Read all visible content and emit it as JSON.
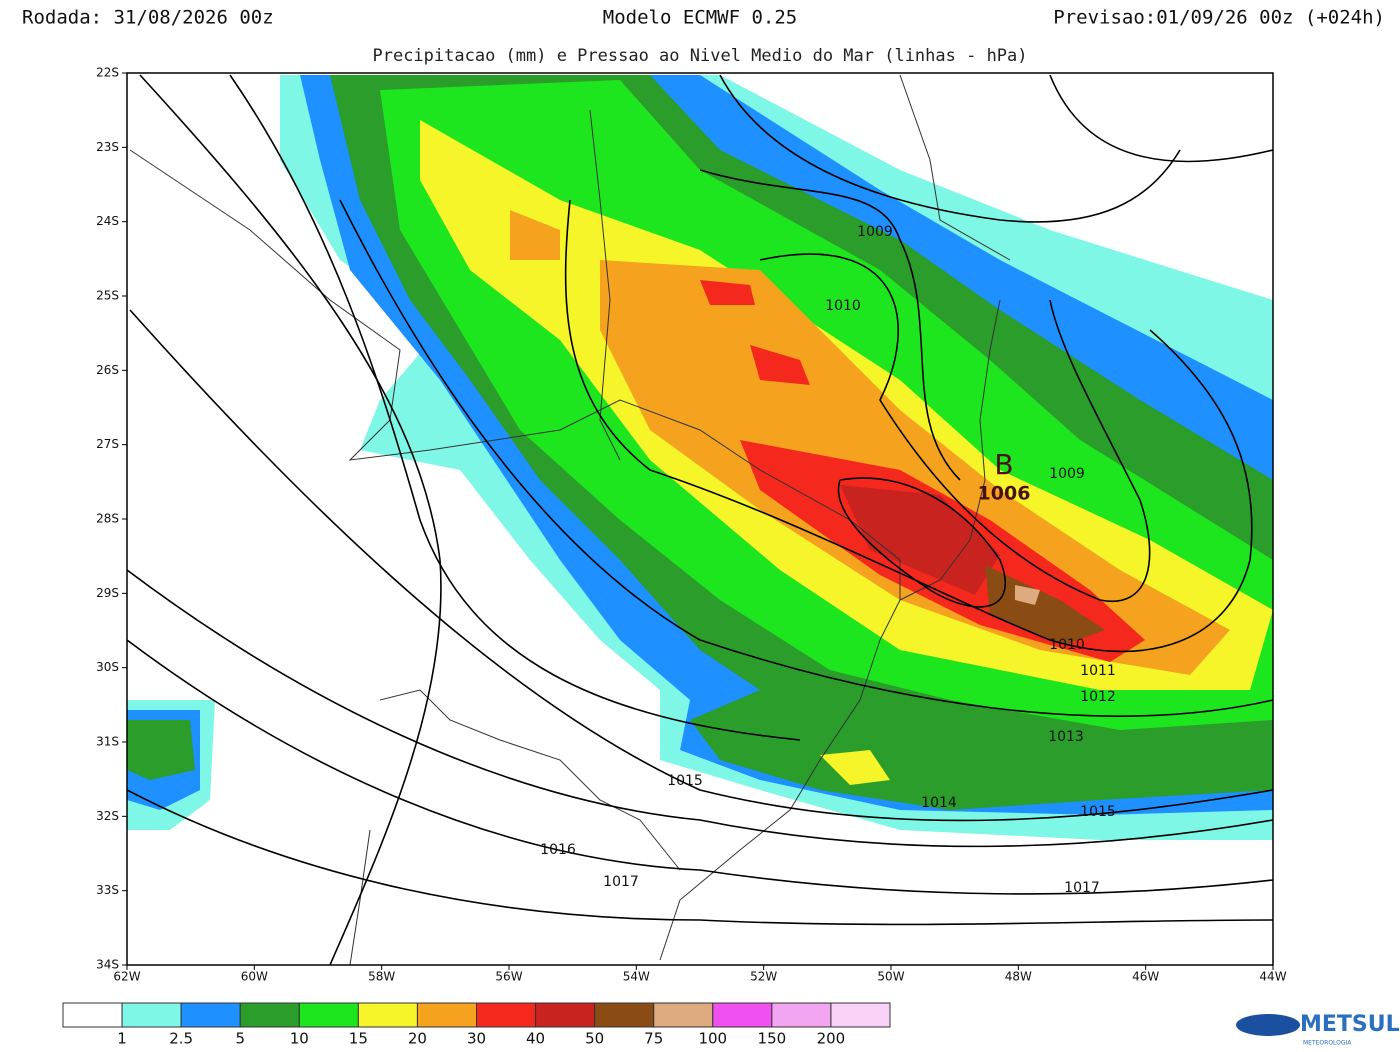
{
  "header": {
    "run": "Rodada: 31/08/2026 00z",
    "model": "Modelo ECMWF 0.25",
    "forecast": "Previsao:01/09/26 00z (+024h)",
    "subtitle": "Precipitacao (mm) e Pressao ao Nivel Medio do Mar (linhas - hPa)"
  },
  "lat_labels": [
    "22S",
    "23S",
    "24S",
    "25S",
    "26S",
    "27S",
    "28S",
    "29S",
    "30S",
    "31S",
    "32S",
    "33S",
    "34S"
  ],
  "lon_labels": [
    "62W",
    "60W",
    "58W",
    "56W",
    "54W",
    "52W",
    "50W",
    "48W",
    "46W",
    "44W"
  ],
  "isobar_labels": [
    "1009",
    "1010",
    "1009",
    "1010",
    "1011",
    "1012",
    "1013",
    "1015",
    "1014",
    "1015",
    "1016",
    "1017",
    "1017"
  ],
  "low": {
    "symbol": "B",
    "value": "1006"
  },
  "colorbar": {
    "colors": [
      "#ffffff",
      "#7ff7e6",
      "#1e90ff",
      "#2a9d2a",
      "#1ee61e",
      "#f5f52a",
      "#f5a21e",
      "#f5281e",
      "#c8231e",
      "#8b4c14",
      "#deaa7f",
      "#f050f0",
      "#f2a6f2",
      "#f8d0f8"
    ],
    "labels": [
      "1",
      "2.5",
      "5",
      "10",
      "15",
      "20",
      "30",
      "40",
      "50",
      "75",
      "100",
      "150",
      "200"
    ]
  },
  "logo": {
    "name": "METSUL",
    "tagline": "METEOROLOGIA"
  }
}
